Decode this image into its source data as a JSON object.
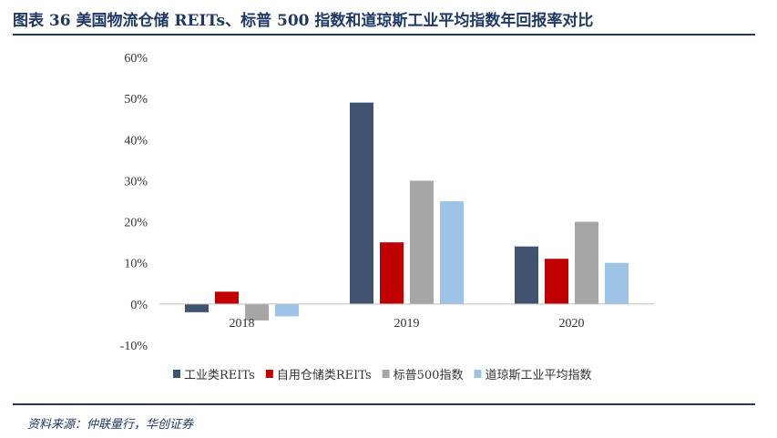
{
  "header": {
    "title": "图表 36   美国物流仓储 REITs、标普 500 指数和道琼斯工业平均指数年回报率对比"
  },
  "footer": {
    "source": "资料来源：仲联量行，华创证券"
  },
  "chart_data": {
    "type": "bar",
    "categories": [
      "2018",
      "2019",
      "2020"
    ],
    "series": [
      {
        "name": "工业类REITs",
        "values": [
          -2,
          49,
          14
        ],
        "color": "#3f5370"
      },
      {
        "name": "自用仓储类REITs",
        "values": [
          3,
          15,
          11
        ],
        "color": "#c00000"
      },
      {
        "name": "标普500指数",
        "values": [
          -4,
          30,
          20
        ],
        "color": "#a6a6a6"
      },
      {
        "name": "道琼斯工业平均指数",
        "values": [
          -3,
          25,
          10
        ],
        "color": "#9dc3e6"
      }
    ],
    "yticks": [
      "60%",
      "50%",
      "40%",
      "30%",
      "20%",
      "10%",
      "0%",
      "-10%"
    ],
    "ylim": [
      -10,
      60
    ],
    "grid": false,
    "legend": "bottom"
  }
}
